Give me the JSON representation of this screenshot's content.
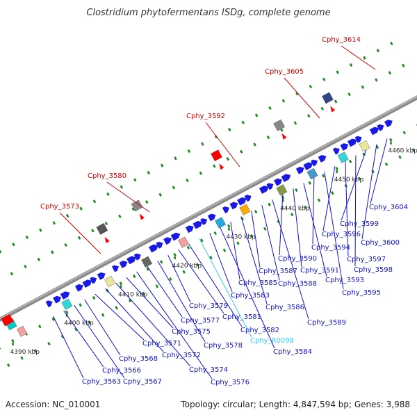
{
  "title": "Clostridium phytofermentans ISDg, complete genome",
  "footer": {
    "accession": "Accession: NC_010001",
    "stats": "Topology: circular; Length: 4,847,594 bp; Genes: 3,988"
  },
  "colors": {
    "gene": "#1a1ae6",
    "label_blue": "#1010cc",
    "label_cyan": "#33ccff",
    "label_red": "#cc0000",
    "tick_dot": "#228822",
    "backbone": "#8c8c8c"
  },
  "scale": {
    "ticks": [
      {
        "label": "4390 kbp"
      },
      {
        "label": "4400 kbp"
      },
      {
        "label": "4410 kbp"
      },
      {
        "label": "4420 kbp"
      },
      {
        "label": "4430 kbp"
      },
      {
        "label": "4440 kbp"
      },
      {
        "label": "4450 kbp"
      },
      {
        "label": "4460 kbp"
      }
    ]
  },
  "upper_labels": [
    {
      "text": "Cphy_3573"
    },
    {
      "text": "Cphy_3580"
    },
    {
      "text": "Cphy_3592"
    },
    {
      "text": "Cphy_3605"
    },
    {
      "text": "Cphy_3614"
    }
  ],
  "lower_labels": [
    {
      "text": "Cphy_3563",
      "color": "blue"
    },
    {
      "text": "Cphy_3566",
      "color": "blue"
    },
    {
      "text": "Cphy_3567",
      "color": "blue"
    },
    {
      "text": "Cphy_3568",
      "color": "blue"
    },
    {
      "text": "Cphy_3571",
      "color": "blue"
    },
    {
      "text": "Cphy_3572",
      "color": "blue"
    },
    {
      "text": "Cphy_3574",
      "color": "blue"
    },
    {
      "text": "Cphy_3575",
      "color": "blue"
    },
    {
      "text": "Cphy_3576",
      "color": "blue"
    },
    {
      "text": "Cphy_3577",
      "color": "blue"
    },
    {
      "text": "Cphy_3578",
      "color": "blue"
    },
    {
      "text": "Cphy_3579",
      "color": "blue"
    },
    {
      "text": "Cphy_3581",
      "color": "blue"
    },
    {
      "text": "Cphy_3582",
      "color": "blue"
    },
    {
      "text": "Cphy_R0098",
      "color": "cyan"
    },
    {
      "text": "Cphy_3583",
      "color": "blue"
    },
    {
      "text": "Cphy_3584",
      "color": "blue"
    },
    {
      "text": "Cphy_3585",
      "color": "blue"
    },
    {
      "text": "Cphy_3586",
      "color": "blue"
    },
    {
      "text": "Cphy_3587",
      "color": "blue"
    },
    {
      "text": "Cphy_3588",
      "color": "blue"
    },
    {
      "text": "Cphy_3589",
      "color": "blue"
    },
    {
      "text": "Cphy_3590",
      "color": "blue"
    },
    {
      "text": "Cphy_3591",
      "color": "blue"
    },
    {
      "text": "Cphy_3593",
      "color": "blue"
    },
    {
      "text": "Cphy_3594",
      "color": "blue"
    },
    {
      "text": "Cphy_3595",
      "color": "blue"
    },
    {
      "text": "Cphy_3596",
      "color": "blue"
    },
    {
      "text": "Cphy_3597",
      "color": "blue"
    },
    {
      "text": "Cphy_3598",
      "color": "blue"
    },
    {
      "text": "Cphy_3599",
      "color": "blue"
    },
    {
      "text": "Cphy_3600",
      "color": "blue"
    },
    {
      "text": "Cphy_3604",
      "color": "blue"
    }
  ]
}
